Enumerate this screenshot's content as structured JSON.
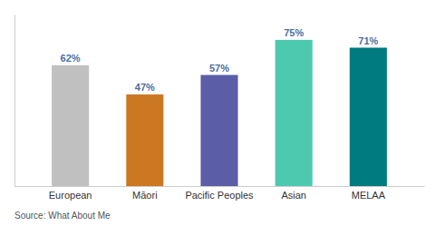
{
  "chart_data": {
    "type": "bar",
    "categories": [
      "European",
      "Māori",
      "Pacific Peoples",
      "Asian",
      "MELAA"
    ],
    "values": [
      62,
      47,
      57,
      75,
      71
    ],
    "value_labels": [
      "62%",
      "47%",
      "57%",
      "75%",
      "71%"
    ],
    "colors": [
      "#c0c0c0",
      "#cc7722",
      "#5b5ea6",
      "#4dc9b0",
      "#007b80"
    ],
    "ylim": [
      0,
      88
    ],
    "data_labels": true,
    "tick_labels": "x",
    "annotations": [
      "Source: What About Me"
    ]
  }
}
